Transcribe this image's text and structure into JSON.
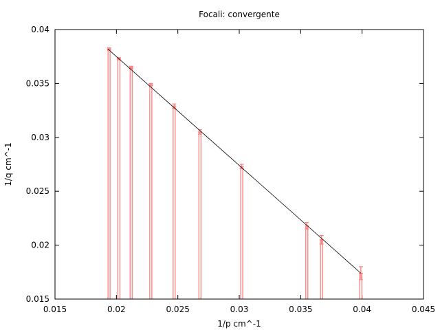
{
  "chart_data": {
    "type": "scatter",
    "title": "Focali: convergente",
    "xlabel": "1/p cm^-1",
    "ylabel": "1/q cm^-1",
    "xlim": [
      0.015,
      0.045
    ],
    "ylim": [
      0.015,
      0.04
    ],
    "xticks": [
      "0.015",
      "0.02",
      "0.025",
      "0.03",
      "0.035",
      "0.04",
      "0.045"
    ],
    "yticks": [
      "0.015",
      "0.02",
      "0.025",
      "0.03",
      "0.035",
      "0.04"
    ],
    "grid": false,
    "colors": {
      "data": "#ff7f7f",
      "fit": "#000000",
      "frame": "#000000"
    },
    "series": [
      {
        "style": "impulses-with-errorbars",
        "points": [
          {
            "x": 0.0194,
            "y": 0.0382,
            "err": 0.0001
          },
          {
            "x": 0.0202,
            "y": 0.0373,
            "err": 0.0001
          },
          {
            "x": 0.0212,
            "y": 0.0365,
            "err": 0.0001
          },
          {
            "x": 0.0228,
            "y": 0.0349,
            "err": 0.0001
          },
          {
            "x": 0.0247,
            "y": 0.0329,
            "err": 0.0002
          },
          {
            "x": 0.0268,
            "y": 0.0305,
            "err": 0.0002
          },
          {
            "x": 0.0302,
            "y": 0.0273,
            "err": 0.0002
          },
          {
            "x": 0.0355,
            "y": 0.0218,
            "err": 0.0003
          },
          {
            "x": 0.0367,
            "y": 0.0205,
            "err": 0.0004
          },
          {
            "x": 0.0399,
            "y": 0.0174,
            "err": 0.0006
          }
        ]
      }
    ],
    "fit": {
      "x": [
        0.0193,
        0.0399
      ],
      "y": [
        0.0382,
        0.0174
      ]
    }
  }
}
